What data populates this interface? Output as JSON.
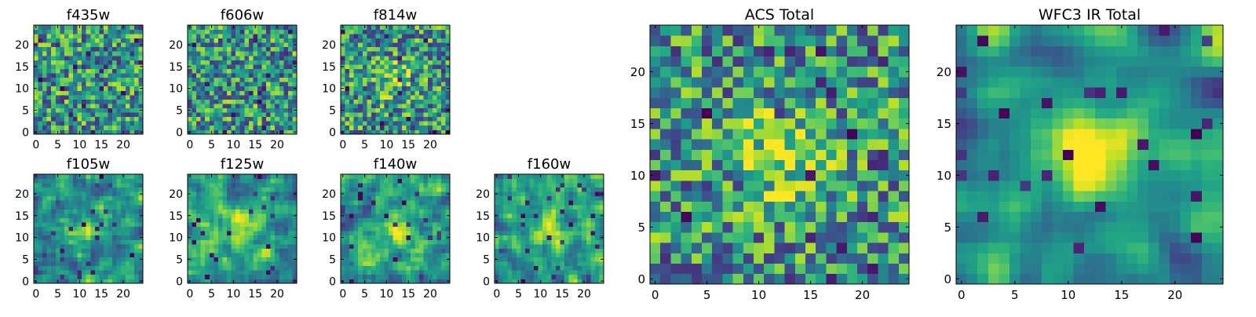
{
  "chart_data": [
    {
      "type": "heatmap",
      "title": "f435w",
      "xlabel": "",
      "ylabel": "",
      "xlim": [
        0,
        24
      ],
      "ylim": [
        0,
        24
      ],
      "x_ticks": [
        "0",
        "5",
        "10",
        "15",
        "20"
      ],
      "y_ticks": [
        "0",
        "5",
        "10",
        "15",
        "20"
      ],
      "grid": false,
      "colormap": "viridis",
      "pattern": "noise",
      "smooth": 0,
      "center_peak": 0,
      "seed": 11
    },
    {
      "type": "heatmap",
      "title": "f606w",
      "xlabel": "",
      "ylabel": "",
      "xlim": [
        0,
        24
      ],
      "ylim": [
        0,
        24
      ],
      "x_ticks": [
        "0",
        "5",
        "10",
        "15",
        "20"
      ],
      "y_ticks": [
        "0",
        "5",
        "10",
        "15",
        "20"
      ],
      "grid": false,
      "colormap": "viridis",
      "pattern": "noise",
      "smooth": 0,
      "center_peak": 0,
      "seed": 23
    },
    {
      "type": "heatmap",
      "title": "f814w",
      "xlabel": "",
      "ylabel": "",
      "xlim": [
        0,
        24
      ],
      "ylim": [
        0,
        24
      ],
      "x_ticks": [
        "0",
        "5",
        "10",
        "15",
        "20"
      ],
      "y_ticks": [
        "0",
        "5",
        "10",
        "15",
        "20"
      ],
      "grid": false,
      "colormap": "viridis",
      "pattern": "noise",
      "smooth": 0,
      "center_peak": 0.25,
      "seed": 37
    },
    {
      "type": "heatmap",
      "title": "f105w",
      "xlabel": "",
      "ylabel": "",
      "xlim": [
        0,
        24
      ],
      "ylim": [
        0,
        24
      ],
      "x_ticks": [
        "0",
        "5",
        "10",
        "15",
        "20"
      ],
      "y_ticks": [
        "0",
        "5",
        "10",
        "15",
        "20"
      ],
      "grid": false,
      "colormap": "viridis",
      "pattern": "smoothed noise",
      "smooth": 1,
      "center_peak": 0.3,
      "seed": 41
    },
    {
      "type": "heatmap",
      "title": "f125w",
      "xlabel": "",
      "ylabel": "",
      "xlim": [
        0,
        24
      ],
      "ylim": [
        0,
        24
      ],
      "x_ticks": [
        "0",
        "5",
        "10",
        "15",
        "20"
      ],
      "y_ticks": [
        "0",
        "5",
        "10",
        "15",
        "20"
      ],
      "grid": false,
      "colormap": "viridis",
      "pattern": "smoothed noise",
      "smooth": 1,
      "center_peak": 0.3,
      "seed": 53
    },
    {
      "type": "heatmap",
      "title": "f140w",
      "xlabel": "",
      "ylabel": "",
      "xlim": [
        0,
        24
      ],
      "ylim": [
        0,
        24
      ],
      "x_ticks": [
        "0",
        "5",
        "10",
        "15",
        "20"
      ],
      "y_ticks": [
        "0",
        "5",
        "10",
        "15",
        "20"
      ],
      "grid": false,
      "colormap": "viridis",
      "pattern": "smoothed noise",
      "smooth": 1,
      "center_peak": 0.3,
      "seed": 67
    },
    {
      "type": "heatmap",
      "title": "f160w",
      "xlabel": "",
      "ylabel": "",
      "xlim": [
        0,
        24
      ],
      "ylim": [
        0,
        24
      ],
      "x_ticks": [
        "0",
        "5",
        "10",
        "15",
        "20"
      ],
      "y_ticks": [
        "0",
        "5",
        "10",
        "15",
        "20"
      ],
      "grid": false,
      "colormap": "viridis",
      "pattern": "smoothed noise",
      "smooth": 1,
      "center_peak": 0.35,
      "seed": 79
    },
    {
      "type": "heatmap",
      "title": "ACS Total",
      "xlabel": "",
      "ylabel": "",
      "xlim": [
        0,
        24
      ],
      "ylim": [
        0,
        24
      ],
      "x_ticks": [
        "0",
        "5",
        "10",
        "15",
        "20"
      ],
      "y_ticks": [
        "0",
        "5",
        "10",
        "15",
        "20"
      ],
      "grid": false,
      "colormap": "viridis",
      "pattern": "noise",
      "smooth": 0,
      "center_peak": 0.35,
      "seed": 97
    },
    {
      "type": "heatmap",
      "title": "WFC3 IR Total",
      "xlabel": "",
      "ylabel": "",
      "xlim": [
        0,
        24
      ],
      "ylim": [
        0,
        24
      ],
      "x_ticks": [
        "0",
        "5",
        "10",
        "15",
        "20"
      ],
      "y_ticks": [
        "0",
        "5",
        "10",
        "15",
        "20"
      ],
      "grid": false,
      "colormap": "viridis",
      "pattern": "smoothed noise",
      "smooth": 2,
      "center_peak": 0.5,
      "seed": 113
    }
  ]
}
